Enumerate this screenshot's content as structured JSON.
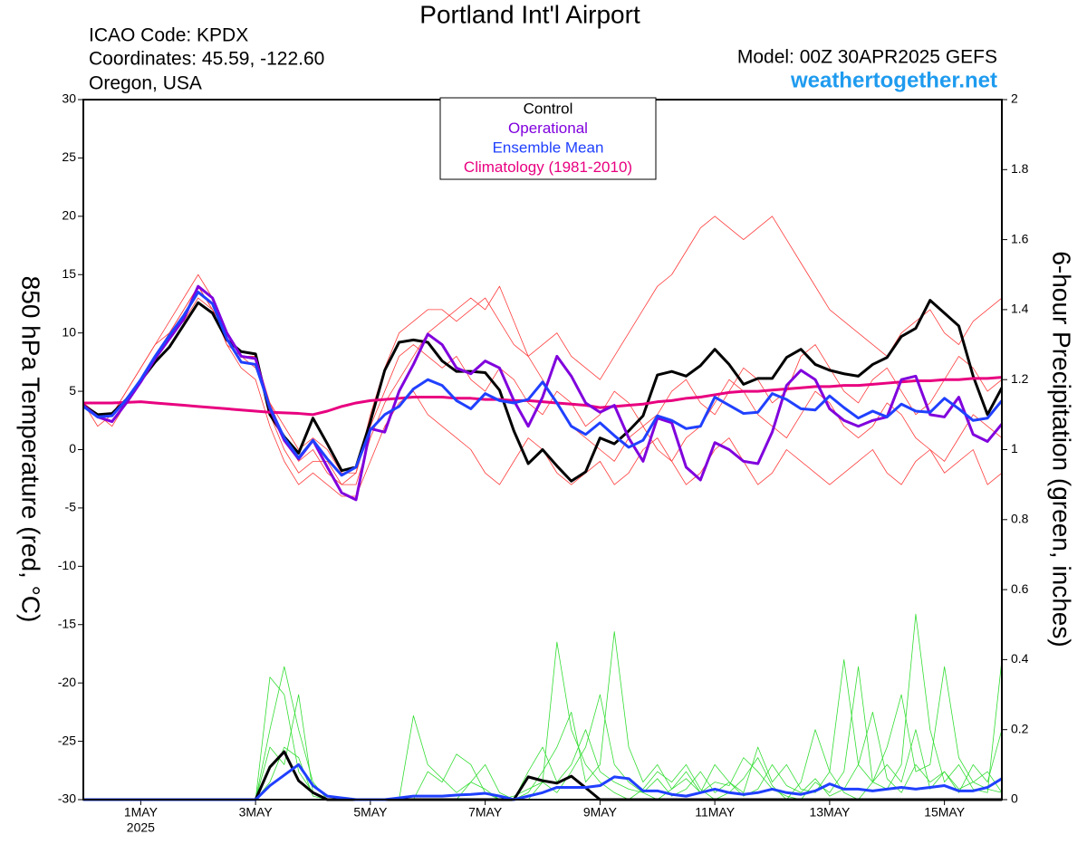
{
  "chart_data": {
    "type": "line",
    "title": "Portland Int'l Airport",
    "info_lines": [
      "ICAO Code: KPDX",
      "Coordinates: 45.59, -122.60",
      "Oregon, USA"
    ],
    "model": "Model: 00Z 30APR2025 GEFS",
    "source": "weathertogether.net",
    "ylabel": "850 hPa Temperature (red, °C)",
    "y2label": "6-hour Precipitation (green, inches)",
    "legend": "upper center",
    "xlim": [
      0,
      16
    ],
    "xticks": [
      {
        "value": 1,
        "label": "1MAY"
      },
      {
        "value": 3,
        "label": "3MAY"
      },
      {
        "value": 5,
        "label": "5MAY"
      },
      {
        "value": 7,
        "label": "7MAY"
      },
      {
        "value": 9,
        "label": "9MAY"
      },
      {
        "value": 11,
        "label": "11MAY"
      },
      {
        "value": 13,
        "label": "13MAY"
      },
      {
        "value": 15,
        "label": "15MAY"
      }
    ],
    "xtick_year": "2025",
    "ylim": [
      -30,
      30
    ],
    "yticks": [
      -30,
      -25,
      -20,
      -15,
      -10,
      -5,
      0,
      5,
      10,
      15,
      20,
      25,
      30
    ],
    "y2lim": [
      0,
      2
    ],
    "y2ticks": [
      0,
      0.2,
      0.4,
      0.6,
      0.8,
      1,
      1.2,
      1.4,
      1.6,
      1.8,
      2
    ],
    "x": [
      0,
      0.25,
      0.5,
      0.75,
      1,
      1.25,
      1.5,
      1.75,
      2,
      2.25,
      2.5,
      2.75,
      3,
      3.25,
      3.5,
      3.75,
      4,
      4.25,
      4.5,
      4.75,
      5,
      5.25,
      5.5,
      5.75,
      6,
      6.25,
      6.5,
      6.75,
      7,
      7.25,
      7.5,
      7.75,
      8,
      8.25,
      8.5,
      8.75,
      9,
      9.25,
      9.5,
      9.75,
      10,
      10.25,
      10.5,
      10.75,
      11,
      11.25,
      11.5,
      11.75,
      12,
      12.25,
      12.5,
      12.75,
      13,
      13.25,
      13.5,
      13.75,
      14,
      14.25,
      14.5,
      14.75,
      15,
      15.25,
      15.5,
      15.75,
      16
    ],
    "series": [
      {
        "color": "#ff3b3b",
        "line_width": 0.8,
        "values": [
          4,
          3,
          3,
          5,
          7,
          9,
          11,
          13,
          15,
          13,
          10,
          8,
          7,
          4,
          1,
          -1,
          0,
          -2,
          -3,
          -2,
          3,
          7,
          10,
          11,
          12,
          12,
          11,
          12,
          13,
          11,
          9,
          8,
          9,
          10,
          8,
          7,
          6,
          8,
          10,
          12,
          14,
          15,
          17,
          19,
          20,
          19,
          18,
          19,
          20,
          18,
          16,
          14,
          12,
          11,
          10,
          9,
          8,
          10,
          11,
          12,
          10,
          9,
          11,
          12,
          13
        ]
      },
      {
        "color": "#ff3b3b",
        "line_width": 0.8,
        "values": [
          4,
          3,
          2,
          4,
          6,
          8,
          10,
          12,
          14,
          12,
          9,
          7,
          6,
          2,
          -1,
          -3,
          -2,
          -3,
          -4,
          -4,
          -1,
          2,
          4,
          5,
          3,
          2,
          1,
          0,
          -2,
          -3,
          -1,
          1,
          0,
          -2,
          -3,
          -2,
          -1,
          -3,
          -2,
          0,
          1,
          -1,
          -3,
          -2,
          0,
          1,
          -1,
          -3,
          -2,
          0,
          -1,
          -2,
          -3,
          -2,
          -1,
          0,
          -2,
          -3,
          -1,
          0,
          -2,
          -1,
          0,
          -3,
          -2
        ]
      },
      {
        "color": "#ff3b3b",
        "line_width": 0.8,
        "values": [
          4,
          3,
          3,
          4,
          6,
          8,
          10,
          11,
          13,
          12,
          10,
          8,
          8,
          4,
          2,
          0,
          1,
          0,
          -2,
          -2,
          2,
          5,
          8,
          9,
          8,
          7,
          8,
          6,
          5,
          7,
          6,
          4,
          3,
          5,
          4,
          2,
          3,
          5,
          4,
          2,
          3,
          5,
          6,
          4,
          3,
          5,
          7,
          6,
          4,
          5,
          8,
          9,
          7,
          5,
          4,
          6,
          7,
          5,
          3,
          4,
          6,
          8,
          7,
          5,
          6
        ]
      },
      {
        "color": "#ff3b3b",
        "line_width": 0.8,
        "values": [
          4,
          2,
          3,
          5,
          7,
          9,
          10,
          12,
          14,
          12,
          9,
          8,
          8,
          3,
          0,
          -2,
          -1,
          -1,
          -3,
          -3,
          1,
          4,
          6,
          8,
          10,
          11,
          12,
          13,
          12,
          14,
          11,
          8,
          6,
          4,
          2,
          1,
          0,
          -1,
          1,
          2,
          0,
          -1,
          1,
          2,
          4,
          6,
          5,
          3,
          2,
          1,
          3,
          5,
          4,
          2,
          1,
          2,
          4,
          3,
          1,
          0,
          -1,
          1,
          3,
          2,
          1
        ]
      },
      {
        "color": "#33dd33",
        "line_width": 0.8,
        "axis": "y2",
        "values": [
          0,
          0,
          0,
          0,
          0,
          0,
          0,
          0,
          0,
          0,
          0,
          0,
          0,
          0.35,
          0.3,
          0.08,
          0.02,
          0,
          0,
          0,
          0,
          0,
          0,
          0,
          0,
          0,
          0,
          0,
          0,
          0,
          0,
          0,
          0.05,
          0.45,
          0.2,
          0.1,
          0.05,
          0.02,
          0,
          0.03,
          0.08,
          0.05,
          0.1,
          0.03,
          0,
          0.02,
          0.06,
          0.12,
          0.04,
          0,
          0.05,
          0.2,
          0.08,
          0.02,
          0,
          0.05,
          0.15,
          0.3,
          0.08,
          0.1,
          0.38,
          0.12,
          0.05,
          0.03,
          0.02
        ]
      },
      {
        "color": "#33dd33",
        "line_width": 0.8,
        "axis": "y2",
        "values": [
          0,
          0,
          0,
          0,
          0,
          0,
          0,
          0,
          0,
          0,
          0,
          0,
          0,
          0.2,
          0.38,
          0.2,
          0.05,
          0,
          0,
          0,
          0,
          0,
          0,
          0,
          0.08,
          0.05,
          0.13,
          0.1,
          0.02,
          0,
          0,
          0.02,
          0.08,
          0.15,
          0.25,
          0.05,
          0.1,
          0.48,
          0.15,
          0.05,
          0.1,
          0.03,
          0.08,
          0.02,
          0.1,
          0.05,
          0.02,
          0.15,
          0.05,
          0.1,
          0.03,
          0.02,
          0.08,
          0.4,
          0.1,
          0.05,
          0.03,
          0.1,
          0.53,
          0.2,
          0.05,
          0.1,
          0.03,
          0.02,
          0.4
        ]
      },
      {
        "color": "#33dd33",
        "line_width": 0.8,
        "axis": "y2",
        "values": [
          0,
          0,
          0,
          0,
          0,
          0,
          0,
          0,
          0,
          0,
          0,
          0,
          0,
          0.15,
          0.1,
          0.3,
          0.02,
          0,
          0,
          0,
          0,
          0,
          0,
          0.24,
          0.1,
          0.06,
          0.02,
          0.05,
          0.03,
          0,
          0.01,
          0.03,
          0.05,
          0.02,
          0.08,
          0.15,
          0.3,
          0.1,
          0.05,
          0.02,
          0,
          0.03,
          0.06,
          0.02,
          0.05,
          0.04,
          0.12,
          0.08,
          0.03,
          0.01,
          0,
          0.05,
          0.02,
          0.08,
          0.38,
          0.05,
          0.1,
          0.05,
          0.2,
          0.03,
          0.08,
          0.02,
          0.1,
          0.05,
          0.2
        ]
      },
      {
        "color": "#33dd33",
        "line_width": 0.8,
        "axis": "y2",
        "values": [
          0,
          0,
          0,
          0,
          0,
          0,
          0,
          0,
          0,
          0,
          0,
          0,
          0,
          0.05,
          0.15,
          0.12,
          0.01,
          0,
          0,
          0,
          0,
          0,
          0,
          0,
          0,
          0,
          0,
          0.05,
          0.1,
          0.02,
          0,
          0.08,
          0.15,
          0.05,
          0.1,
          0.2,
          0.08,
          0.05,
          0.03,
          0.02,
          0.06,
          0.01,
          0.03,
          0.08,
          0.02,
          0.05,
          0.01,
          0.03,
          0.1,
          0.04,
          0.02,
          0.06,
          0.01,
          0.03,
          0.1,
          0.25,
          0.06,
          0.02,
          0.1,
          0.05,
          0.08,
          0.03,
          0.05,
          0.08,
          0.02
        ]
      },
      {
        "name": "Control",
        "color": "#000000",
        "line_width": 3,
        "values": [
          3.8,
          3.0,
          3.1,
          4.3,
          5.9,
          7.5,
          8.8,
          10.7,
          12.6,
          11.7,
          9.4,
          8.4,
          8.2,
          3.0,
          1.1,
          -0.3,
          2.7,
          0.5,
          -1.8,
          -1.5,
          2.4,
          6.8,
          9.2,
          9.4,
          9.2,
          7.6,
          6.7,
          6.7,
          6.6,
          5.1,
          1.6,
          -1.2,
          0,
          -1.4,
          -2.7,
          -1.9,
          1.0,
          0.5,
          1.6,
          2.9,
          6.4,
          6.7,
          6.3,
          7.2,
          8.6,
          7.3,
          5.6,
          6.1,
          6.1,
          7.9,
          8.6,
          7.3,
          6.8,
          6.5,
          6.3,
          7.3,
          7.9,
          9.7,
          10.4,
          12.8,
          11.7,
          10.6,
          6.3,
          3.0,
          5.3
        ]
      },
      {
        "color": "#000000",
        "line_width": 3,
        "axis": "y2",
        "values": [
          0,
          0,
          0,
          0,
          0,
          0,
          0,
          0,
          0,
          0,
          0,
          0,
          0,
          0.093,
          0.137,
          0.054,
          0.02,
          0,
          0,
          0,
          0,
          0,
          0,
          0,
          0,
          0,
          0,
          0,
          0,
          0,
          0,
          0.065,
          0.054,
          0.047,
          0.067,
          0.034,
          0,
          0,
          0,
          0,
          0,
          0,
          0,
          0,
          0,
          0,
          0,
          0,
          0,
          0,
          0,
          0,
          0,
          0,
          0,
          0,
          0,
          0,
          0,
          0,
          0,
          0,
          0,
          0,
          0
        ]
      },
      {
        "name": "Climatology (1981-2010)",
        "color": "#e8007f",
        "line_width": 3,
        "values": [
          4.0,
          4.0,
          4.0,
          4.05,
          4.1,
          4.0,
          3.9,
          3.8,
          3.7,
          3.6,
          3.5,
          3.4,
          3.3,
          3.2,
          3.15,
          3.1,
          3.0,
          3.3,
          3.7,
          4.0,
          4.2,
          4.3,
          4.4,
          4.5,
          4.5,
          4.5,
          4.4,
          4.4,
          4.3,
          4.3,
          4.2,
          4.2,
          4.1,
          4.0,
          3.9,
          3.8,
          3.6,
          3.7,
          3.8,
          3.9,
          4.1,
          4.2,
          4.4,
          4.5,
          4.7,
          4.9,
          5.0,
          5.0,
          5.1,
          5.2,
          5.3,
          5.4,
          5.4,
          5.5,
          5.5,
          5.6,
          5.7,
          5.8,
          5.9,
          5.9,
          6.0,
          6.0,
          6.1,
          6.1,
          6.2
        ]
      },
      {
        "name": "Operational",
        "color": "#8000dd",
        "line_width": 3,
        "values": [
          3.8,
          2.8,
          2.4,
          4.0,
          5.8,
          7.8,
          9.5,
          11.2,
          14.0,
          13.0,
          10.0,
          8.0,
          7.8,
          3.5,
          0.8,
          -0.8,
          0.8,
          -1.5,
          -3.7,
          -4.3,
          1.8,
          1.5,
          5.0,
          7.3,
          9.9,
          9.0,
          7.0,
          6.5,
          7.6,
          7.0,
          4.2,
          2.0,
          4.5,
          8.0,
          6.3,
          4.0,
          3.2,
          3.8,
          1.0,
          -1.0,
          2.7,
          2.3,
          -1.5,
          -2.6,
          0.6,
          0.0,
          -1.0,
          -1.2,
          1.5,
          5.5,
          6.8,
          6.0,
          3.5,
          2.5,
          2.0,
          2.5,
          2.8,
          6.0,
          6.3,
          3.0,
          2.8,
          4.5,
          1.3,
          0.7,
          2.2
        ]
      },
      {
        "name": "Ensemble Mean",
        "color": "#2040ff",
        "line_width": 3,
        "values": [
          3.7,
          2.8,
          2.9,
          4.3,
          6.0,
          8.0,
          9.8,
          11.5,
          13.5,
          12.5,
          9.5,
          7.5,
          7.3,
          3.6,
          1.0,
          -0.7,
          0.8,
          -0.8,
          -2.2,
          -1.5,
          1.7,
          3.0,
          3.7,
          5.2,
          6.0,
          5.5,
          4.2,
          3.5,
          4.8,
          4.2,
          4.0,
          4.3,
          5.8,
          4.0,
          2.0,
          1.3,
          2.3,
          1.2,
          0.2,
          0.8,
          2.9,
          2.5,
          1.8,
          2.0,
          4.5,
          3.8,
          3.1,
          3.2,
          4.8,
          4.3,
          3.5,
          3.4,
          4.6,
          3.6,
          2.7,
          3.3,
          2.8,
          3.9,
          3.3,
          3.2,
          4.4,
          3.5,
          2.5,
          2.7,
          4.2
        ]
      },
      {
        "color": "#2040ff",
        "line_width": 3,
        "axis": "y2",
        "values": [
          0,
          0,
          0,
          0,
          0,
          0,
          0,
          0,
          0,
          0,
          0,
          0,
          0,
          0.04,
          0.07,
          0.1,
          0.04,
          0.01,
          0.005,
          0,
          0,
          0,
          0.005,
          0.01,
          0.01,
          0.01,
          0.013,
          0.015,
          0.018,
          0.01,
          0,
          0.01,
          0.02,
          0.035,
          0.035,
          0.035,
          0.04,
          0.065,
          0.06,
          0.025,
          0.025,
          0.015,
          0.01,
          0.02,
          0.03,
          0.02,
          0.015,
          0.02,
          0.03,
          0.02,
          0.015,
          0.025,
          0.045,
          0.03,
          0.03,
          0.025,
          0.03,
          0.035,
          0.03,
          0.035,
          0.04,
          0.025,
          0.025,
          0.035,
          0.06
        ]
      }
    ]
  }
}
